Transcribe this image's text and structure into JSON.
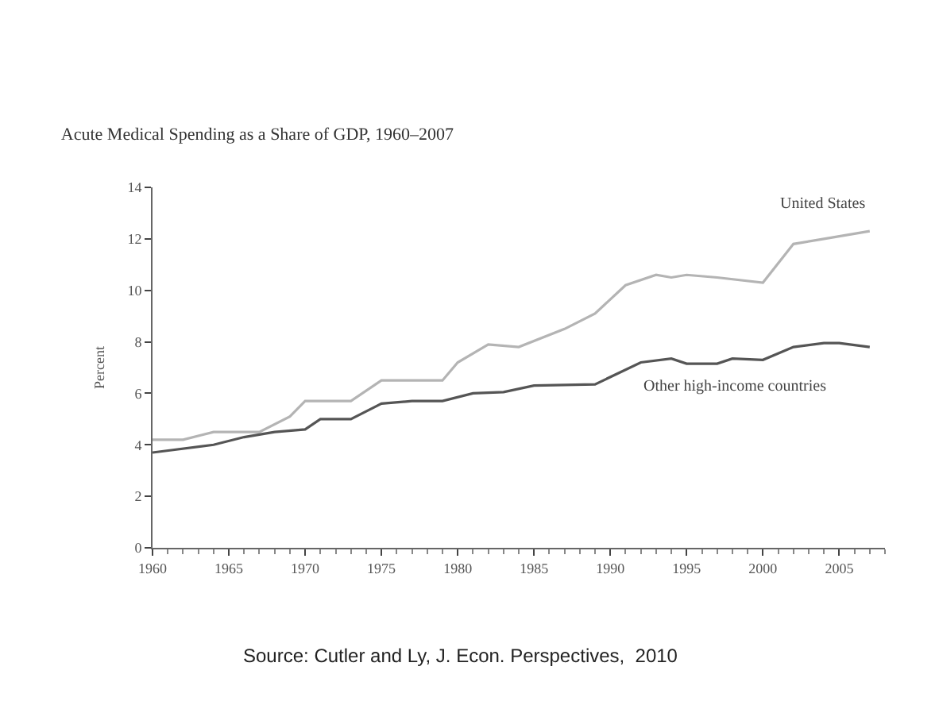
{
  "chart_data": {
    "type": "line",
    "title": "Acute Medical Spending as a Share of GDP, 1960–2007",
    "ylabel": "Percent",
    "xlim": [
      1960,
      2008
    ],
    "xticks": [
      1960,
      1965,
      1970,
      1975,
      1980,
      1985,
      1990,
      1995,
      2000,
      2005
    ],
    "ylim": [
      0,
      14
    ],
    "yticks": [
      0,
      2,
      4,
      6,
      8,
      10,
      12,
      14
    ],
    "grid": false,
    "legend": false,
    "marker": "none",
    "line_style": "solid",
    "series": [
      {
        "name": "United States",
        "color": "#b4b4b4",
        "x": [
          1960,
          1962,
          1964,
          1967,
          1969,
          1970,
          1973,
          1975,
          1979,
          1980,
          1982,
          1984,
          1987,
          1989,
          1991,
          1993,
          1994,
          1995,
          1997,
          2000,
          2002,
          2004,
          2007
        ],
        "values": [
          4.2,
          4.2,
          4.5,
          4.5,
          5.1,
          5.7,
          5.7,
          6.5,
          6.5,
          7.2,
          7.9,
          7.8,
          8.5,
          9.1,
          10.2,
          10.6,
          10.5,
          10.6,
          10.5,
          10.3,
          11.8,
          12.0,
          12.3
        ]
      },
      {
        "name": "Other high-income countries",
        "color": "#555555",
        "x": [
          1960,
          1964,
          1966,
          1968,
          1970,
          1971,
          1973,
          1975,
          1977,
          1979,
          1981,
          1983,
          1985,
          1989,
          1992,
          1994,
          1995,
          1997,
          1998,
          2000,
          2002,
          2004,
          2005,
          2007
        ],
        "values": [
          3.7,
          4.0,
          4.3,
          4.5,
          4.6,
          5.0,
          5.0,
          5.6,
          5.7,
          5.7,
          6.0,
          6.05,
          6.3,
          6.35,
          7.2,
          7.35,
          7.15,
          7.15,
          7.35,
          7.3,
          7.8,
          7.95,
          7.95,
          7.8
        ]
      }
    ],
    "annotations": [
      "Source: Cutler and Ly, J. Econ. Perspectives,  2010"
    ]
  }
}
